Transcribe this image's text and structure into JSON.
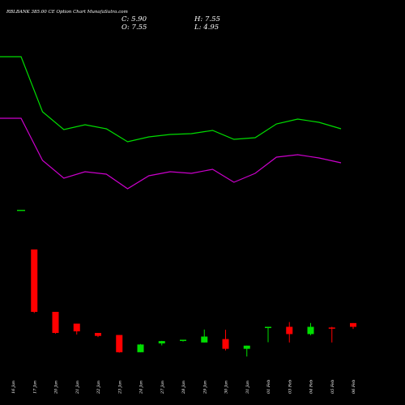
{
  "header": {
    "title": "RBLBANK 385.00  CE Option  Chart MunafaSutra.com",
    "close": "C: 5.90",
    "open": "O: 7.55",
    "high": "H: 7.55",
    "low": "L: 4.95"
  },
  "chart_data": [
    {
      "type": "line",
      "title": "",
      "xlabel": "",
      "ylabel": "",
      "grid": false,
      "x": [
        "16 Jan",
        "17 Jan",
        "20 Jan",
        "21 Jan",
        "22 Jan",
        "23 Jan",
        "24 Jan",
        "27 Jan",
        "28 Jan",
        "29 Jan",
        "30 Jan",
        "31 Jan",
        "01 Feb",
        "03 Feb",
        "04 Feb",
        "05 Feb",
        "06 Feb"
      ],
      "series": [
        {
          "color": "#00dd00",
          "values": [
            70,
            70,
            138,
            160,
            154,
            159,
            175,
            169,
            166,
            165,
            161,
            172,
            170,
            153,
            147,
            151,
            159
          ]
        },
        {
          "color": "#cc00cc",
          "values": [
            146,
            146,
            198,
            220,
            212,
            215,
            233,
            217,
            212,
            214,
            209,
            225,
            214,
            194,
            191,
            195,
            201
          ]
        }
      ]
    },
    {
      "type": "bar",
      "title": "",
      "xlabel": "",
      "ylabel": "",
      "grid": false,
      "categories": [
        "16 Jan"
      ],
      "values": [
        1
      ],
      "color": "#00cc00"
    },
    {
      "type": "candlestick",
      "title": "",
      "xlabel": "",
      "ylabel": "",
      "grid": false,
      "x": [
        "16 Jan",
        "17 Jan",
        "20 Jan",
        "21 Jan",
        "22 Jan",
        "23 Jan",
        "24 Jan",
        "27 Jan",
        "28 Jan",
        "29 Jan",
        "30 Jan",
        "31 Jan",
        "01 Feb",
        "03 Feb",
        "04 Feb",
        "05 Feb",
        "06 Feb"
      ],
      "up_color": "#00dd00",
      "down_color": "#ff0000",
      "candles": [
        {
          "date": "17 Jan",
          "open": 40.0,
          "high": 40.0,
          "low": 12.0,
          "close": 12.5
        },
        {
          "date": "20 Jan",
          "open": 12.5,
          "high": 12.5,
          "low": 2.9,
          "close": 3.2
        },
        {
          "date": "21 Jan",
          "open": 7.3,
          "high": 7.3,
          "low": 2.5,
          "close": 3.9
        },
        {
          "date": "22 Jan",
          "open": 3.2,
          "high": 3.2,
          "low": 1.4,
          "close": 1.9
        },
        {
          "date": "23 Jan",
          "open": 2.3,
          "high": 2.3,
          "low": -5.5,
          "close": -5.3
        },
        {
          "date": "24 Jan",
          "open": -5.3,
          "high": -1.7,
          "low": -5.3,
          "close": -1.9
        },
        {
          "date": "27 Jan",
          "open": -1.4,
          "high": -0.3,
          "low": -2.3,
          "close": -0.4
        },
        {
          "date": "28 Jan",
          "open": -0.3,
          "high": 0.2,
          "low": -0.6,
          "close": 0.2
        },
        {
          "date": "29 Jan",
          "open": -1.0,
          "high": 4.7,
          "low": -1.0,
          "close": 1.6
        },
        {
          "date": "30 Jan",
          "open": 0.5,
          "high": 4.6,
          "low": -4.5,
          "close": -3.8
        },
        {
          "date": "31 Jan",
          "open": -3.8,
          "high": -2.4,
          "low": -7.2,
          "close": -2.4
        },
        {
          "date": "01 Feb",
          "open": 5.9,
          "high": 5.9,
          "low": -0.9,
          "close": 5.9
        },
        {
          "date": "03 Feb",
          "open": 5.9,
          "high": 8.0,
          "low": -1.0,
          "close": 2.7
        },
        {
          "date": "04 Feb",
          "open": 2.7,
          "high": 7.6,
          "low": 2.2,
          "close": 5.9
        },
        {
          "date": "05 Feb",
          "open": 5.6,
          "high": 5.9,
          "low": -1.0,
          "close": 5.1
        },
        {
          "date": "06 Feb",
          "open": 7.55,
          "high": 7.55,
          "low": 4.95,
          "close": 5.9
        }
      ]
    }
  ]
}
